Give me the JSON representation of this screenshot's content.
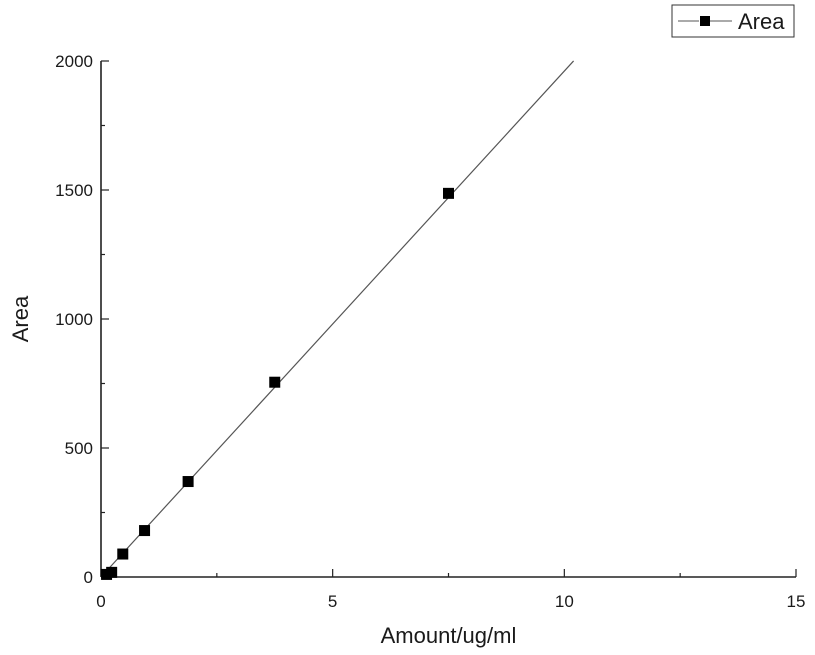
{
  "chart_data": {
    "type": "line",
    "title": "",
    "xlabel": "Amount/ug/ml",
    "ylabel": "Area",
    "xlim": [
      0,
      15
    ],
    "ylim": [
      0,
      2000
    ],
    "xticks": [
      0,
      5,
      10,
      15
    ],
    "yticks": [
      0,
      500,
      1000,
      1500,
      2000
    ],
    "grid": false,
    "legend_position": "top-right",
    "series": [
      {
        "name": "Area",
        "marker": "square",
        "color": "#000000",
        "points": [
          {
            "x": 0.12,
            "y": 10
          },
          {
            "x": 0.23,
            "y": 18
          },
          {
            "x": 0.47,
            "y": 89
          },
          {
            "x": 0.94,
            "y": 180
          },
          {
            "x": 1.88,
            "y": 370
          },
          {
            "x": 3.75,
            "y": 755
          },
          {
            "x": 7.5,
            "y": 1487
          }
        ]
      }
    ],
    "fit_line": {
      "color": "#555555",
      "x_start": 0,
      "x_end": 10.2,
      "slope": 196.5,
      "intercept": -4
    }
  }
}
